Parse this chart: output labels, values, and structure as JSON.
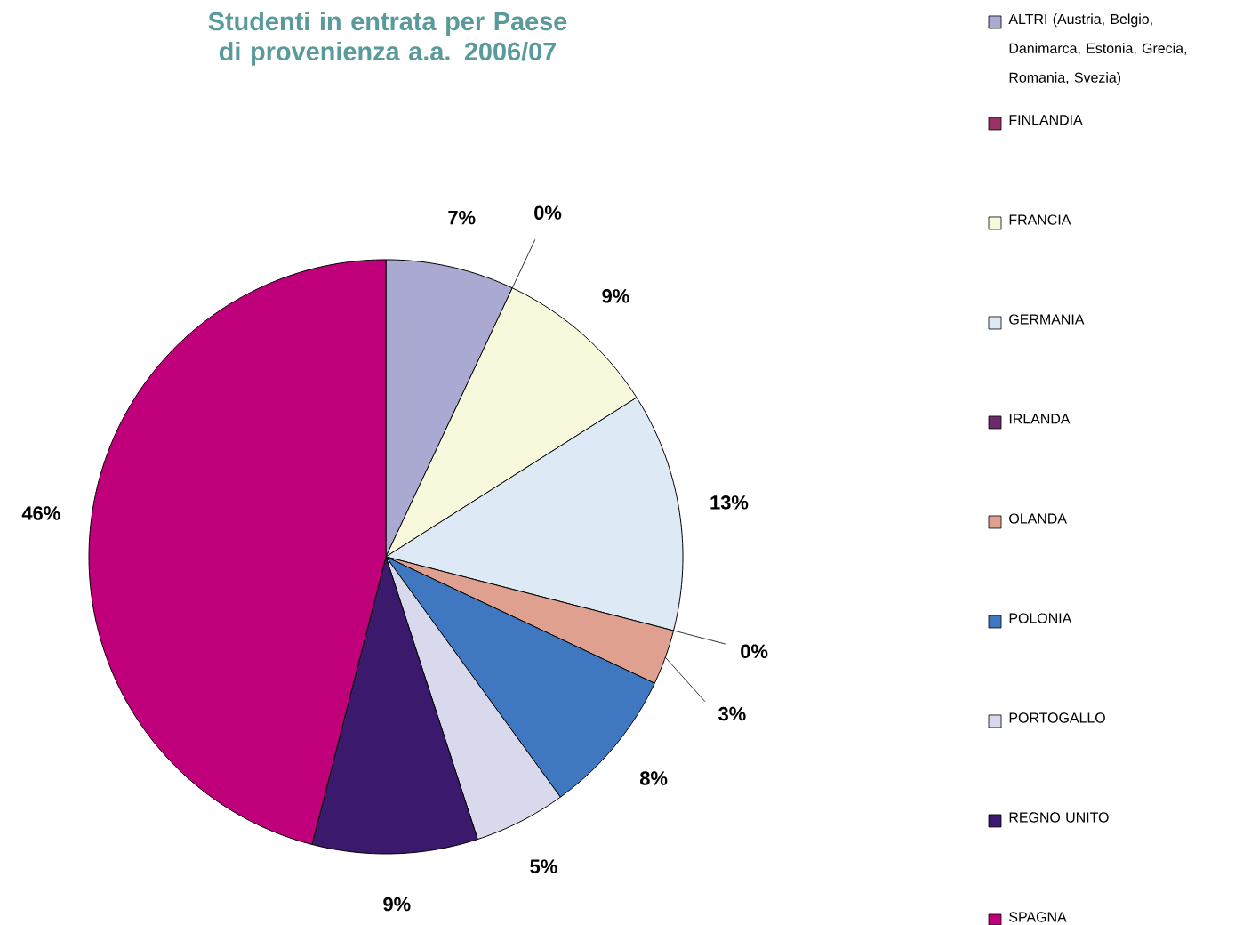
{
  "chart_data": {
    "type": "pie",
    "title": "Studenti in entrata per Paese di provenienza a.a. 2006/07",
    "categories": [
      "ALTRI (Austria, Belgio, Danimarca, Estonia, Grecia, Romania, Svezia)",
      "FINLANDIA",
      "FRANCIA",
      "GERMANIA",
      "IRLANDA",
      "OLANDA",
      "POLONIA",
      "PORTOGALLO",
      "REGNO UNITO",
      "SPAGNA"
    ],
    "values": [
      7,
      0,
      9,
      13,
      0,
      3,
      8,
      5,
      9,
      46
    ],
    "value_labels": [
      "7%",
      "0%",
      "9%",
      "13%",
      "0%",
      "3%",
      "8%",
      "5%",
      "9%",
      "46%"
    ],
    "colors": [
      "#a9a9d2",
      "#993366",
      "#f8f8dc",
      "#dde9f5",
      "#6b2b6b",
      "#e0a090",
      "#3f78c0",
      "#d9d9ee",
      "#3b1a6e",
      "#c0007a"
    ],
    "legend": "right"
  }
}
